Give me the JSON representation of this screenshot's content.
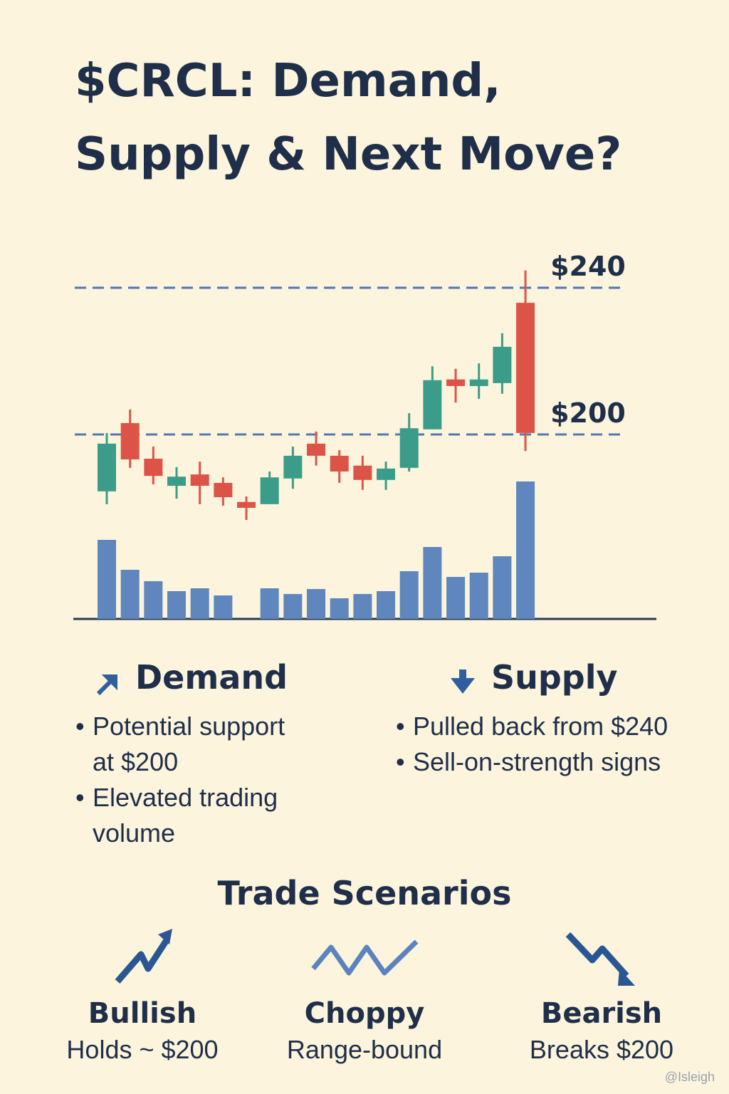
{
  "title": [
    "$CRCL: Demand,",
    "Supply & Next Move?"
  ],
  "chart_data": {
    "type": "candlestick",
    "open": [
      184.5,
      203.1,
      193.4,
      186.0,
      189.1,
      186.8,
      181.6,
      181.0,
      188.0,
      197.5,
      194.2,
      191.5,
      187.6,
      190.9,
      201.4,
      215.0,
      213.2,
      214.0,
      235.9
    ],
    "high": [
      200.4,
      206.8,
      196.7,
      191.1,
      192.6,
      188.3,
      183.1,
      189.9,
      196.7,
      200.8,
      195.7,
      194.2,
      192.6,
      205.8,
      218.6,
      217.9,
      219.4,
      227.6,
      244.7
    ],
    "low": [
      181.0,
      190.9,
      186.4,
      182.5,
      181.0,
      180.6,
      176.7,
      181.0,
      185.2,
      191.5,
      186.8,
      184.9,
      184.9,
      189.9,
      201.4,
      208.7,
      209.7,
      211.1,
      195.5
    ],
    "close": [
      197.5,
      193.2,
      188.7,
      188.5,
      186.0,
      182.9,
      180.0,
      188.3,
      194.2,
      194.2,
      189.9,
      187.6,
      190.7,
      201.7,
      214.8,
      213.2,
      215.0,
      223.9,
      200.4
    ],
    "volume": [
      111,
      69,
      53,
      39,
      43,
      33,
      null,
      43,
      35,
      42,
      29,
      35,
      39,
      67,
      101,
      59,
      65,
      88,
      193
    ],
    "up_color": "#3c9c8a",
    "down_color": "#dc5448",
    "volume_color": "#5f86bd",
    "level_color": "#4f79b3",
    "ylim": [
      170,
      250
    ],
    "yticks": [
      {
        "value": 200,
        "label": "$200"
      },
      {
        "value": 240,
        "label": "$240"
      }
    ],
    "vlim": [
      0,
      200
    ]
  },
  "demand": {
    "heading": "Demand",
    "items": [
      [
        "Potential support",
        "at $200"
      ],
      [
        "Elevated trading",
        "volume"
      ]
    ]
  },
  "supply": {
    "heading": "Supply",
    "items": [
      [
        "Pulled back from $240"
      ],
      [
        "Sell-on-strength signs"
      ]
    ]
  },
  "scenarios": {
    "heading": "Trade Scenarios",
    "items": [
      {
        "name": "Bullish",
        "note": "Holds ~ $200"
      },
      {
        "name": "Choppy",
        "note": "Range-bound"
      },
      {
        "name": "Bearish",
        "note": "Breaks $200"
      }
    ]
  },
  "watermark": "@Isleigh"
}
